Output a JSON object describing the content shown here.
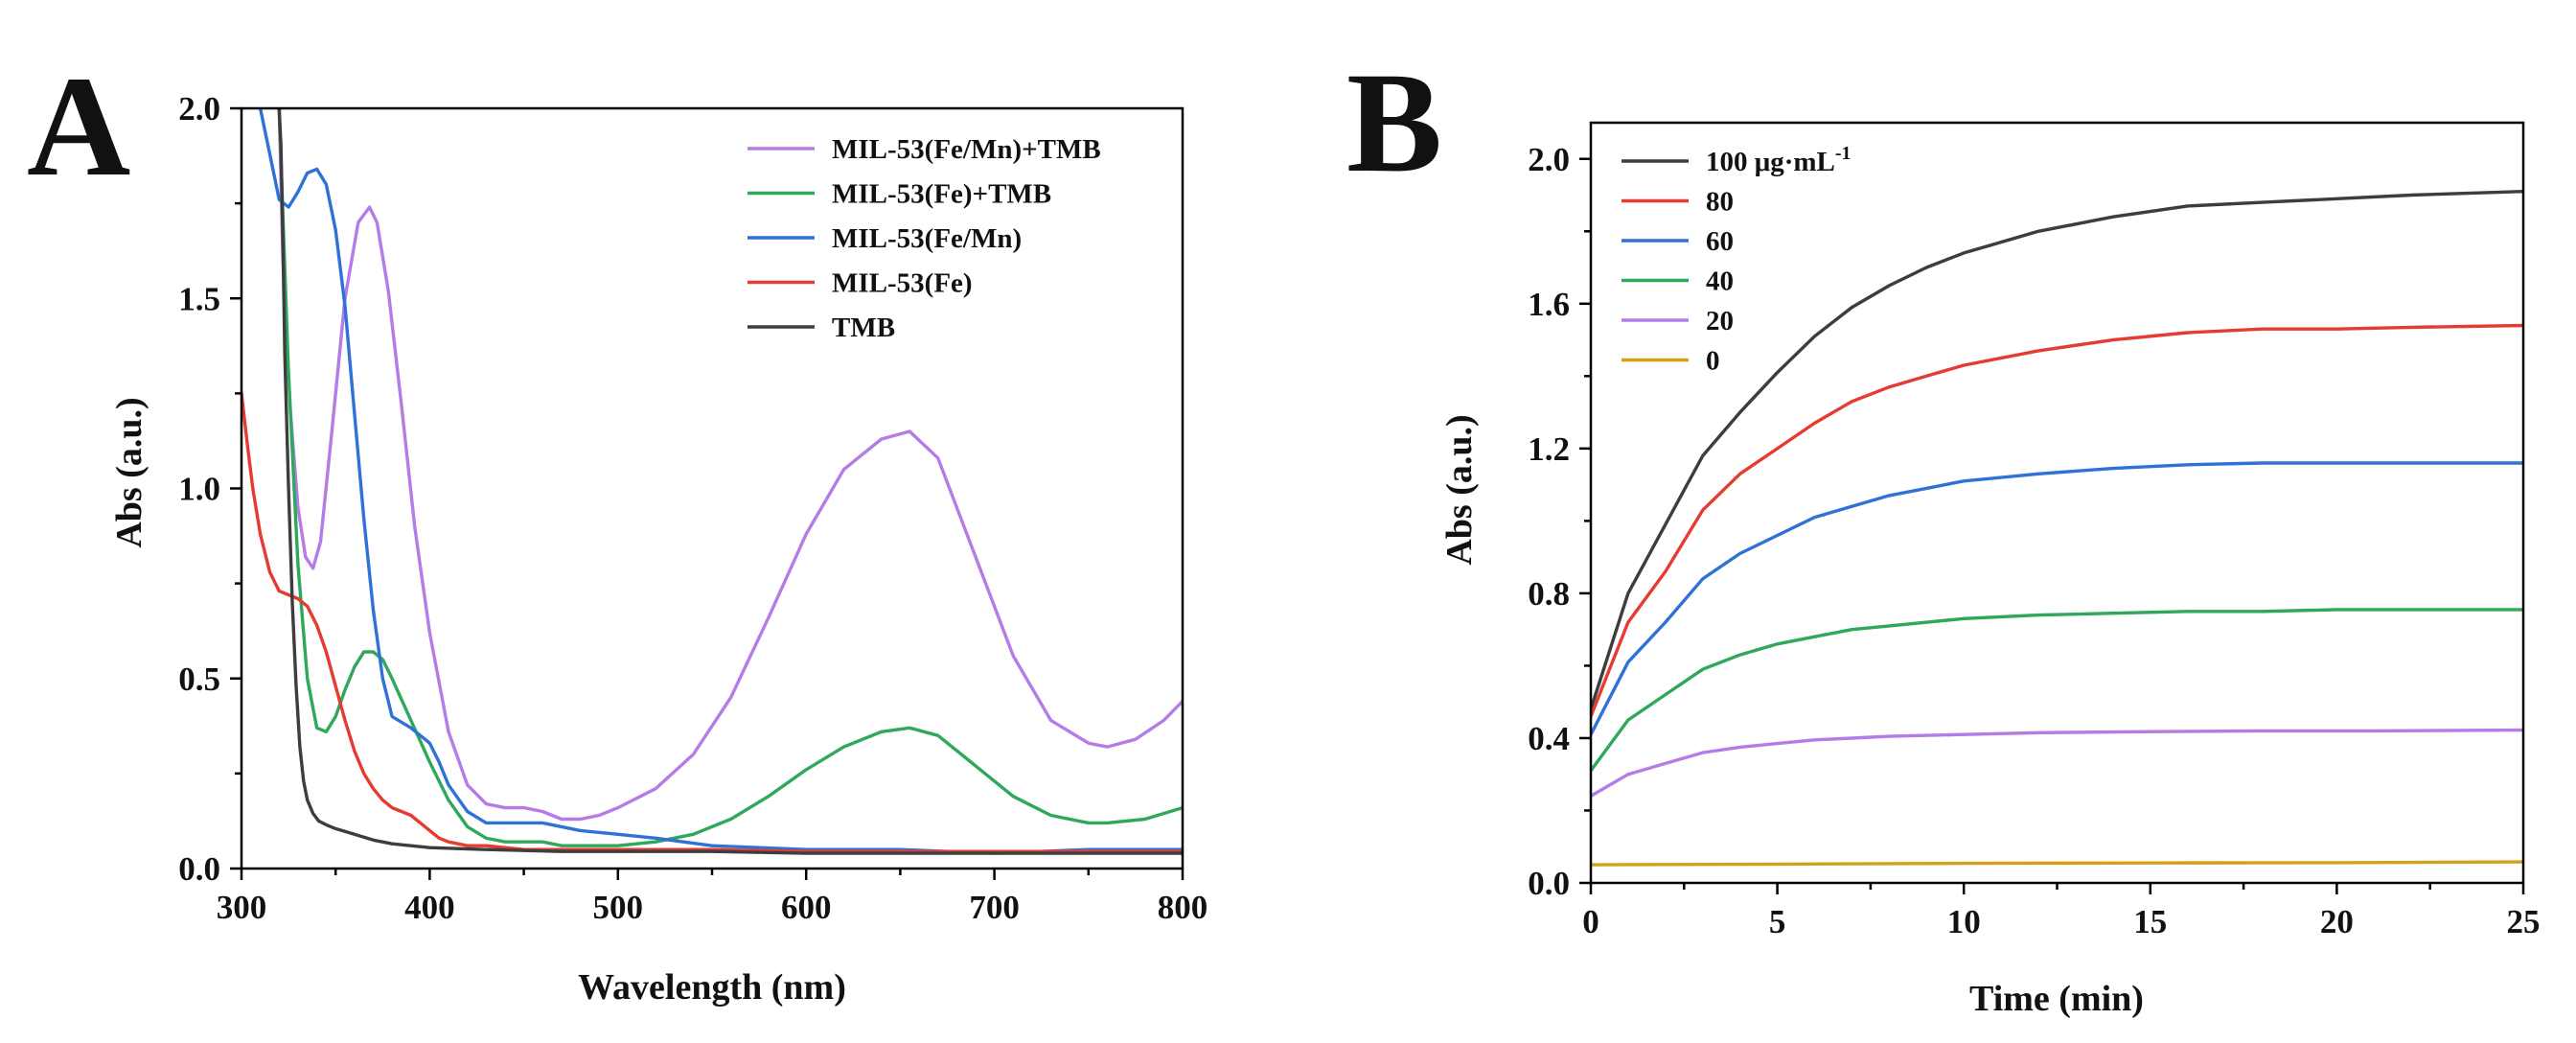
{
  "chart_data": [
    {
      "panel_label": "A",
      "type": "line",
      "title": "",
      "xlabel": "Wavelength (nm)",
      "ylabel": "Abs (a.u.)",
      "xlim": [
        300,
        800
      ],
      "ylim": [
        0,
        2.0
      ],
      "xticks": [
        300,
        400,
        500,
        600,
        700,
        800
      ],
      "xtick_labels": [
        "300",
        "400",
        "500",
        "600",
        "700",
        "800"
      ],
      "yticks": [
        0,
        0.5,
        1.0,
        1.5,
        2.0
      ],
      "ytick_labels": [
        "0.0",
        "0.5",
        "1.0",
        "1.5",
        "2.0"
      ],
      "legend_position": "top-right",
      "series": [
        {
          "name": "MIL-53(Fe/Mn)+TMB",
          "color": "#b57be6",
          "x": [
            320,
            322,
            326,
            330,
            334,
            338,
            342,
            348,
            355,
            362,
            368,
            372,
            378,
            385,
            392,
            400,
            410,
            420,
            430,
            440,
            450,
            460,
            470,
            480,
            490,
            500,
            520,
            540,
            560,
            580,
            600,
            620,
            640,
            655,
            670,
            690,
            710,
            730,
            750,
            760,
            775,
            790,
            800
          ],
          "y": [
            2.0,
            1.6,
            1.2,
            0.95,
            0.82,
            0.79,
            0.86,
            1.15,
            1.5,
            1.7,
            1.74,
            1.7,
            1.52,
            1.22,
            0.9,
            0.62,
            0.36,
            0.22,
            0.17,
            0.16,
            0.16,
            0.15,
            0.13,
            0.13,
            0.14,
            0.16,
            0.21,
            0.3,
            0.45,
            0.66,
            0.88,
            1.05,
            1.13,
            1.15,
            1.08,
            0.82,
            0.56,
            0.39,
            0.33,
            0.32,
            0.34,
            0.39,
            0.44
          ]
        },
        {
          "name": "MIL-53(Fe)+TMB",
          "color": "#2ea85a",
          "x": [
            320,
            325,
            330,
            335,
            340,
            345,
            350,
            355,
            360,
            365,
            370,
            375,
            380,
            390,
            400,
            410,
            420,
            430,
            440,
            450,
            460,
            470,
            480,
            500,
            520,
            540,
            560,
            580,
            600,
            620,
            640,
            655,
            670,
            690,
            710,
            730,
            750,
            760,
            780,
            800
          ],
          "y": [
            2.0,
            1.3,
            0.8,
            0.5,
            0.37,
            0.36,
            0.4,
            0.47,
            0.53,
            0.57,
            0.57,
            0.55,
            0.5,
            0.39,
            0.28,
            0.18,
            0.11,
            0.08,
            0.07,
            0.07,
            0.07,
            0.06,
            0.06,
            0.06,
            0.07,
            0.09,
            0.13,
            0.19,
            0.26,
            0.32,
            0.36,
            0.37,
            0.35,
            0.27,
            0.19,
            0.14,
            0.12,
            0.12,
            0.13,
            0.16
          ]
        },
        {
          "name": "MIL-53(Fe/Mn)",
          "color": "#2f72d6",
          "x": [
            310,
            315,
            320,
            325,
            330,
            335,
            340,
            345,
            350,
            355,
            360,
            365,
            370,
            375,
            380,
            390,
            400,
            405,
            410,
            420,
            430,
            440,
            450,
            460,
            470,
            480,
            500,
            520,
            550,
            600,
            650,
            700,
            750,
            800
          ],
          "y": [
            2.0,
            1.88,
            1.76,
            1.74,
            1.78,
            1.83,
            1.84,
            1.8,
            1.68,
            1.48,
            1.2,
            0.92,
            0.68,
            0.5,
            0.4,
            0.37,
            0.33,
            0.28,
            0.22,
            0.15,
            0.12,
            0.12,
            0.12,
            0.12,
            0.11,
            0.1,
            0.09,
            0.08,
            0.06,
            0.05,
            0.05,
            0.04,
            0.05,
            0.05
          ]
        },
        {
          "name": "MIL-53(Fe)",
          "color": "#e53b30",
          "x": [
            300,
            303,
            306,
            310,
            315,
            320,
            325,
            330,
            335,
            340,
            345,
            350,
            355,
            360,
            365,
            370,
            375,
            380,
            385,
            390,
            395,
            400,
            405,
            410,
            420,
            430,
            440,
            450,
            470,
            500,
            550,
            600,
            650,
            700,
            750,
            800
          ],
          "y": [
            1.25,
            1.12,
            1.0,
            0.88,
            0.78,
            0.73,
            0.72,
            0.71,
            0.69,
            0.64,
            0.57,
            0.48,
            0.39,
            0.31,
            0.25,
            0.21,
            0.18,
            0.16,
            0.15,
            0.14,
            0.12,
            0.1,
            0.08,
            0.07,
            0.06,
            0.06,
            0.055,
            0.05,
            0.05,
            0.05,
            0.05,
            0.045,
            0.045,
            0.045,
            0.045,
            0.045
          ]
        },
        {
          "name": "TMB",
          "color": "#3d3d3d",
          "x": [
            320,
            321,
            322,
            323,
            325,
            327,
            329,
            331,
            333,
            335,
            338,
            341,
            345,
            350,
            360,
            370,
            380,
            400,
            430,
            470,
            500,
            550,
            600,
            700,
            800
          ],
          "y": [
            2.0,
            1.9,
            1.65,
            1.35,
            1.0,
            0.7,
            0.48,
            0.32,
            0.23,
            0.18,
            0.145,
            0.125,
            0.115,
            0.105,
            0.09,
            0.075,
            0.065,
            0.055,
            0.05,
            0.045,
            0.045,
            0.045,
            0.04,
            0.04,
            0.04
          ]
        }
      ]
    },
    {
      "panel_label": "B",
      "type": "line",
      "title": "",
      "xlabel": "Time (min)",
      "ylabel": "Abs (a.u.)",
      "xlim": [
        0,
        25
      ],
      "ylim": [
        0,
        2.1
      ],
      "xticks": [
        0,
        5,
        10,
        15,
        20,
        25
      ],
      "xtick_labels": [
        "0",
        "5",
        "10",
        "15",
        "20",
        "25"
      ],
      "yticks": [
        0,
        0.4,
        0.8,
        1.2,
        1.6,
        2.0
      ],
      "ytick_labels": [
        "0.0",
        "0.4",
        "0.8",
        "1.2",
        "1.6",
        "2.0"
      ],
      "legend_position": "top-left",
      "legend_unit_label": "100 μg·mL",
      "legend_unit_superscript": "-1",
      "series": [
        {
          "name": "100",
          "color": "#3d3d3d",
          "x": [
            0,
            1,
            2,
            3,
            4,
            5,
            6,
            7,
            8,
            9,
            10,
            12,
            14,
            16,
            18,
            20,
            22,
            25
          ],
          "y": [
            0.48,
            0.8,
            0.99,
            1.18,
            1.3,
            1.41,
            1.51,
            1.59,
            1.65,
            1.7,
            1.74,
            1.8,
            1.84,
            1.87,
            1.88,
            1.89,
            1.9,
            1.91
          ]
        },
        {
          "name": "80",
          "color": "#e53b30",
          "x": [
            0,
            1,
            2,
            3,
            4,
            5,
            6,
            7,
            8,
            9,
            10,
            12,
            14,
            16,
            18,
            20,
            22,
            25
          ],
          "y": [
            0.46,
            0.72,
            0.86,
            1.03,
            1.13,
            1.2,
            1.27,
            1.33,
            1.37,
            1.4,
            1.43,
            1.47,
            1.5,
            1.52,
            1.53,
            1.53,
            1.535,
            1.54
          ]
        },
        {
          "name": "60",
          "color": "#2f72d6",
          "x": [
            0,
            1,
            2,
            3,
            4,
            5,
            6,
            7,
            8,
            9,
            10,
            12,
            14,
            16,
            18,
            20,
            22,
            25
          ],
          "y": [
            0.41,
            0.61,
            0.72,
            0.84,
            0.91,
            0.96,
            1.01,
            1.04,
            1.07,
            1.09,
            1.11,
            1.13,
            1.145,
            1.155,
            1.16,
            1.16,
            1.16,
            1.16
          ]
        },
        {
          "name": "40",
          "color": "#2ea85a",
          "x": [
            0,
            1,
            2,
            3,
            4,
            5,
            6,
            7,
            8,
            10,
            12,
            14,
            16,
            18,
            20,
            22,
            25
          ],
          "y": [
            0.31,
            0.45,
            0.52,
            0.59,
            0.63,
            0.66,
            0.68,
            0.7,
            0.71,
            0.73,
            0.74,
            0.745,
            0.75,
            0.75,
            0.755,
            0.755,
            0.755
          ]
        },
        {
          "name": "20",
          "color": "#b57be6",
          "x": [
            0,
            1,
            2,
            3,
            4,
            5,
            6,
            7,
            8,
            10,
            12,
            15,
            18,
            21,
            25
          ],
          "y": [
            0.24,
            0.3,
            0.33,
            0.36,
            0.375,
            0.385,
            0.395,
            0.4,
            0.405,
            0.41,
            0.415,
            0.418,
            0.42,
            0.42,
            0.422
          ]
        },
        {
          "name": "0",
          "color": "#d4a017",
          "x": [
            0,
            5,
            10,
            15,
            20,
            25
          ],
          "y": [
            0.05,
            0.052,
            0.054,
            0.055,
            0.056,
            0.058
          ]
        }
      ]
    }
  ]
}
